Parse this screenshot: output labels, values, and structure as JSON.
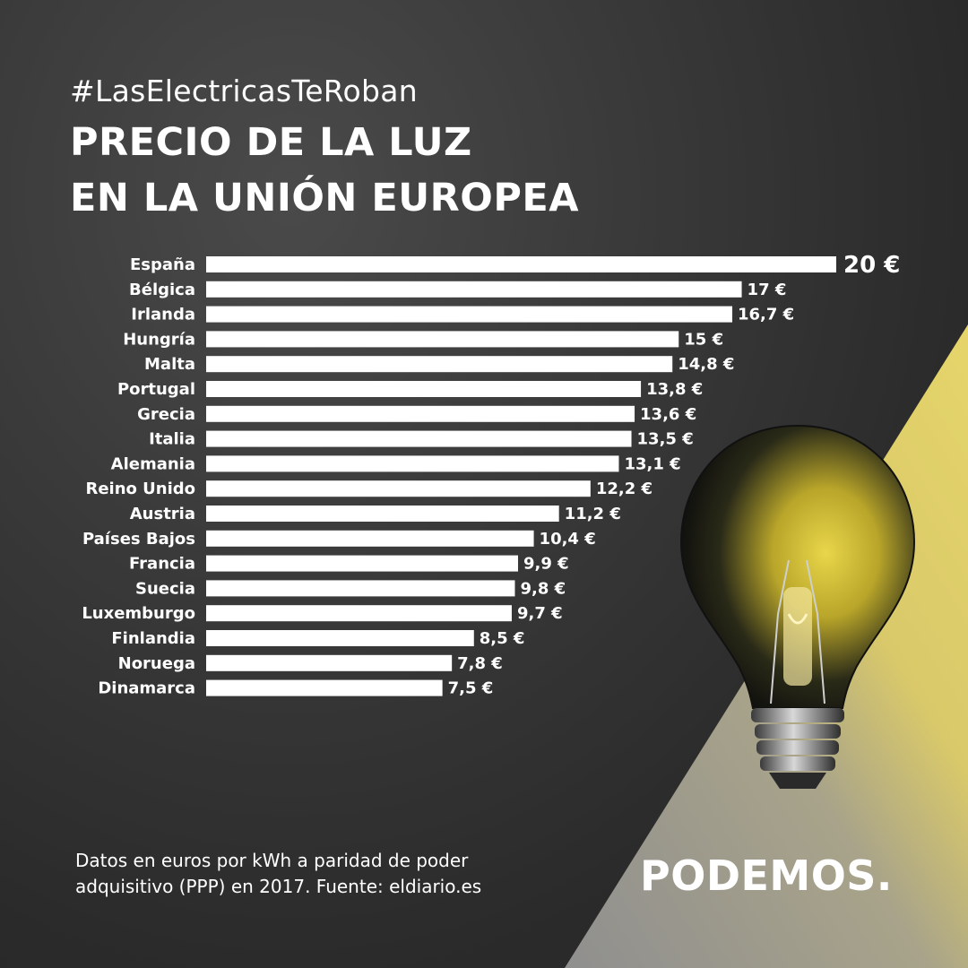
{
  "header": {
    "hashtag": "#LasElectricasTeRoban",
    "title_line1": "PRECIO DE LA LUZ",
    "title_line2": "EN LA UNIÓN EUROPEA"
  },
  "chart_data": {
    "type": "bar",
    "orientation": "horizontal",
    "categories": [
      "España",
      "Bélgica",
      "Irlanda",
      "Hungría",
      "Malta",
      "Portugal",
      "Grecia",
      "Italia",
      "Alemania",
      "Reino Unido",
      "Austria",
      "Países Bajos",
      "Francia",
      "Suecia",
      "Luxemburgo",
      "Finlandia",
      "Noruega",
      "Dinamarca"
    ],
    "values": [
      20,
      17,
      16.7,
      15,
      14.8,
      13.8,
      13.6,
      13.5,
      13.1,
      12.2,
      11.2,
      10.4,
      9.9,
      9.8,
      9.7,
      8.5,
      7.8,
      7.5
    ],
    "value_labels": [
      "20 €",
      "17 €",
      "16,7 €",
      "15 €",
      "14,8 €",
      "13,8 €",
      "13,6 €",
      "13,5 €",
      "13,1 €",
      "12,2 €",
      "11,2 €",
      "10,4 €",
      "9,9 €",
      "9,8 €",
      "9,7 €",
      "8,5 €",
      "7,8 €",
      "7,5 €"
    ],
    "xlim": [
      0,
      20
    ],
    "grid": false,
    "bar_color": "#ffffff"
  },
  "footer": {
    "note_line1": "Datos en euros por kWh a paridad de poder",
    "note_line2": "adquisitivo (PPP) en 2017. Fuente: eldiario.es",
    "brand": "PODEMOS."
  },
  "colors": {
    "background": "#2f2f2f",
    "accent_yellow": "#e8d86a",
    "accent_gray": "#9a9a9a",
    "text": "#ffffff"
  },
  "icons": [
    "light-bulb-icon"
  ]
}
